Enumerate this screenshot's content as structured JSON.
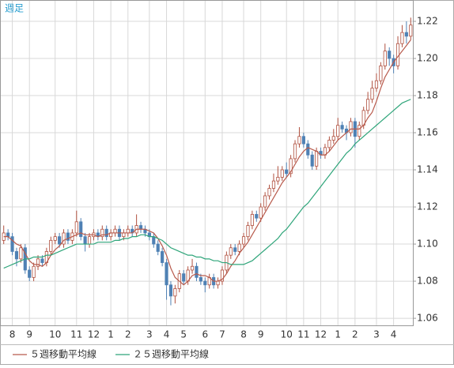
{
  "chart_data": {
    "type": "candlestick",
    "title": "週足",
    "categories": [
      null,
      null,
      "8",
      null,
      null,
      null,
      "9",
      null,
      null,
      null,
      null,
      null,
      "10",
      null,
      null,
      null,
      null,
      "11",
      null,
      null,
      null,
      "12",
      null,
      null,
      null,
      "1",
      null,
      null,
      null,
      "2",
      null,
      null,
      null,
      null,
      "3",
      null,
      null,
      null,
      "4",
      null,
      null,
      null,
      "5",
      null,
      null,
      null,
      null,
      "6",
      null,
      null,
      null,
      "7",
      null,
      null,
      null,
      null,
      "8",
      null,
      null,
      null,
      "9",
      null,
      null,
      null,
      null,
      null,
      "10",
      null,
      null,
      null,
      "11",
      null,
      null,
      null,
      "12",
      null,
      null,
      null,
      "1",
      null,
      null,
      null,
      "2",
      null,
      null,
      null,
      null,
      "3",
      null,
      null,
      null,
      "4",
      null,
      null,
      null,
      null
    ],
    "open": [
      1.102,
      1.106,
      1.104,
      1.096,
      1.092,
      1.098,
      1.086,
      1.082,
      1.088,
      1.092,
      1.09,
      1.096,
      1.102,
      1.104,
      1.1,
      1.106,
      1.102,
      1.106,
      1.112,
      1.104,
      1.1,
      1.104,
      1.106,
      1.104,
      1.108,
      1.104,
      1.106,
      1.108,
      1.104,
      1.106,
      1.108,
      1.106,
      1.11,
      1.108,
      1.106,
      1.104,
      1.1,
      1.096,
      1.09,
      1.078,
      1.072,
      1.076,
      1.084,
      1.08,
      1.086,
      1.088,
      1.082,
      1.08,
      1.078,
      1.082,
      1.078,
      1.08,
      1.086,
      1.094,
      1.098,
      1.096,
      1.1,
      1.104,
      1.11,
      1.116,
      1.114,
      1.12,
      1.126,
      1.13,
      1.134,
      1.136,
      1.14,
      1.138,
      1.146,
      1.154,
      1.158,
      1.154,
      1.148,
      1.142,
      1.15,
      1.148,
      1.152,
      1.156,
      1.158,
      1.164,
      1.162,
      1.16,
      1.166,
      1.158,
      1.164,
      1.172,
      1.178,
      1.184,
      1.188,
      1.196,
      1.204,
      1.2,
      1.196,
      1.208,
      1.214,
      1.212
    ],
    "high": [
      1.11,
      1.108,
      1.106,
      1.098,
      1.1,
      1.1,
      1.088,
      1.09,
      1.094,
      1.094,
      1.098,
      1.104,
      1.106,
      1.106,
      1.108,
      1.108,
      1.108,
      1.118,
      1.114,
      1.106,
      1.106,
      1.108,
      1.108,
      1.11,
      1.11,
      1.108,
      1.11,
      1.11,
      1.108,
      1.11,
      1.11,
      1.116,
      1.112,
      1.11,
      1.108,
      1.106,
      1.102,
      1.098,
      1.092,
      1.08,
      1.078,
      1.086,
      1.086,
      1.088,
      1.092,
      1.09,
      1.084,
      1.082,
      1.084,
      1.084,
      1.082,
      1.088,
      1.096,
      1.1,
      1.1,
      1.102,
      1.106,
      1.112,
      1.118,
      1.118,
      1.122,
      1.128,
      1.132,
      1.138,
      1.142,
      1.142,
      1.144,
      1.148,
      1.156,
      1.163,
      1.16,
      1.156,
      1.15,
      1.152,
      1.152,
      1.154,
      1.158,
      1.162,
      1.168,
      1.166,
      1.164,
      1.168,
      1.168,
      1.166,
      1.174,
      1.182,
      1.188,
      1.192,
      1.198,
      1.208,
      1.206,
      1.202,
      1.212,
      1.218,
      1.22,
      1.222
    ],
    "low": [
      1.1,
      1.102,
      1.094,
      1.088,
      1.09,
      1.084,
      1.08,
      1.08,
      1.086,
      1.088,
      1.088,
      1.094,
      1.1,
      1.098,
      1.098,
      1.1,
      1.1,
      1.104,
      1.102,
      1.096,
      1.098,
      1.102,
      1.102,
      1.102,
      1.102,
      1.102,
      1.104,
      1.102,
      1.102,
      1.104,
      1.104,
      1.104,
      1.106,
      1.104,
      1.102,
      1.098,
      1.094,
      1.088,
      1.07,
      1.067,
      1.068,
      1.074,
      1.078,
      1.078,
      1.084,
      1.08,
      1.078,
      1.074,
      1.076,
      1.076,
      1.076,
      1.078,
      1.084,
      1.092,
      1.094,
      1.094,
      1.098,
      1.102,
      1.108,
      1.112,
      1.112,
      1.118,
      1.124,
      1.128,
      1.132,
      1.134,
      1.136,
      1.136,
      1.144,
      1.152,
      1.152,
      1.146,
      1.14,
      1.14,
      1.146,
      1.146,
      1.15,
      1.154,
      1.156,
      1.16,
      1.156,
      1.158,
      1.152,
      1.156,
      1.162,
      1.17,
      1.176,
      1.182,
      1.186,
      1.194,
      1.196,
      1.192,
      1.194,
      1.206,
      1.208,
      1.21
    ],
    "close": [
      1.106,
      1.104,
      1.096,
      1.092,
      1.098,
      1.086,
      1.082,
      1.088,
      1.092,
      1.09,
      1.096,
      1.102,
      1.104,
      1.1,
      1.106,
      1.102,
      1.106,
      1.112,
      1.104,
      1.1,
      1.104,
      1.106,
      1.104,
      1.108,
      1.104,
      1.106,
      1.108,
      1.104,
      1.106,
      1.108,
      1.106,
      1.11,
      1.108,
      1.106,
      1.104,
      1.1,
      1.096,
      1.09,
      1.078,
      1.072,
      1.076,
      1.084,
      1.08,
      1.086,
      1.088,
      1.082,
      1.08,
      1.078,
      1.082,
      1.078,
      1.08,
      1.086,
      1.094,
      1.098,
      1.096,
      1.1,
      1.104,
      1.11,
      1.116,
      1.114,
      1.12,
      1.126,
      1.13,
      1.134,
      1.136,
      1.14,
      1.138,
      1.146,
      1.154,
      1.158,
      1.154,
      1.148,
      1.142,
      1.15,
      1.148,
      1.152,
      1.156,
      1.158,
      1.164,
      1.162,
      1.16,
      1.166,
      1.158,
      1.164,
      1.172,
      1.178,
      1.184,
      1.188,
      1.196,
      1.204,
      1.2,
      1.196,
      1.208,
      1.214,
      1.212,
      1.218
    ],
    "up_color": "#b0503f",
    "down_color": "#4f81b4",
    "series": [
      {
        "name": "５週移動平均線",
        "color": "#b85a4c",
        "values": [
          1.104,
          1.104,
          1.102,
          1.1,
          1.099,
          1.095,
          1.091,
          1.089,
          1.089,
          1.088,
          1.09,
          1.094,
          1.097,
          1.099,
          1.102,
          1.103,
          1.104,
          1.105,
          1.106,
          1.105,
          1.105,
          1.105,
          1.104,
          1.105,
          1.105,
          1.106,
          1.106,
          1.106,
          1.106,
          1.106,
          1.106,
          1.108,
          1.108,
          1.108,
          1.107,
          1.106,
          1.103,
          1.099,
          1.094,
          1.087,
          1.082,
          1.08,
          1.078,
          1.08,
          1.083,
          1.084,
          1.083,
          1.083,
          1.082,
          1.08,
          1.08,
          1.081,
          1.084,
          1.088,
          1.091,
          1.095,
          1.098,
          1.101,
          1.105,
          1.109,
          1.113,
          1.117,
          1.121,
          1.125,
          1.129,
          1.133,
          1.136,
          1.139,
          1.143,
          1.147,
          1.15,
          1.152,
          1.151,
          1.15,
          1.148,
          1.148,
          1.15,
          1.153,
          1.156,
          1.158,
          1.16,
          1.162,
          1.162,
          1.162,
          1.164,
          1.168,
          1.171,
          1.177,
          1.184,
          1.19,
          1.194,
          1.198,
          1.201,
          1.204,
          1.207,
          1.21
        ]
      },
      {
        "name": "２５週移動平均線",
        "color": "#2fa57a",
        "values": [
          1.087,
          1.088,
          1.089,
          1.09,
          1.091,
          1.092,
          1.092,
          1.093,
          1.093,
          1.093,
          1.094,
          1.094,
          1.095,
          1.096,
          1.097,
          1.098,
          1.099,
          1.1,
          1.1,
          1.1,
          1.1,
          1.1,
          1.101,
          1.101,
          1.101,
          1.101,
          1.102,
          1.102,
          1.103,
          1.103,
          1.104,
          1.104,
          1.105,
          1.105,
          1.104,
          1.104,
          1.103,
          1.102,
          1.1,
          1.098,
          1.097,
          1.096,
          1.095,
          1.094,
          1.094,
          1.093,
          1.093,
          1.092,
          1.092,
          1.091,
          1.091,
          1.09,
          1.09,
          1.089,
          1.089,
          1.089,
          1.089,
          1.09,
          1.091,
          1.093,
          1.095,
          1.097,
          1.099,
          1.101,
          1.103,
          1.106,
          1.108,
          1.111,
          1.114,
          1.117,
          1.12,
          1.122,
          1.125,
          1.128,
          1.131,
          1.134,
          1.137,
          1.14,
          1.143,
          1.146,
          1.149,
          1.151,
          1.154,
          1.156,
          1.158,
          1.16,
          1.162,
          1.164,
          1.166,
          1.168,
          1.17,
          1.172,
          1.174,
          1.176,
          1.177,
          1.178
        ]
      }
    ],
    "ylim": [
      1.0562,
      1.2315
    ],
    "yticks": [
      1.06,
      1.08,
      {
        "value": 1.1,
        "label": "1.10"
      },
      1.12,
      1.14,
      1.16,
      1.18,
      {
        "value": 1.2,
        "label": "1.20"
      },
      1.22
    ],
    "grid": true
  }
}
